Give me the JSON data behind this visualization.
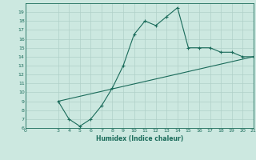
{
  "xlabel": "Humidex (Indice chaleur)",
  "ylabel": "",
  "bg_color": "#cce8e0",
  "line_color": "#1a6b5a",
  "grid_color": "#b0d0c8",
  "curve1_x": [
    3,
    4,
    5,
    6,
    7,
    8,
    9,
    10,
    11,
    12,
    13,
    14,
    15,
    16,
    17,
    18,
    19,
    20,
    21
  ],
  "curve1_y": [
    9,
    7,
    6.2,
    7,
    8.5,
    10.5,
    13,
    16.5,
    18,
    17.5,
    18.5,
    19.5,
    15,
    15,
    15,
    14.5,
    14.5,
    14,
    14
  ],
  "curve2_x": [
    3,
    21
  ],
  "curve2_y": [
    9,
    14
  ],
  "xlim": [
    0,
    21
  ],
  "ylim": [
    6,
    20
  ],
  "xticks": [
    0,
    3,
    4,
    5,
    6,
    7,
    8,
    9,
    10,
    11,
    12,
    13,
    14,
    15,
    16,
    17,
    18,
    19,
    20,
    21
  ],
  "yticks": [
    6,
    7,
    8,
    9,
    10,
    11,
    12,
    13,
    14,
    15,
    16,
    17,
    18,
    19
  ]
}
